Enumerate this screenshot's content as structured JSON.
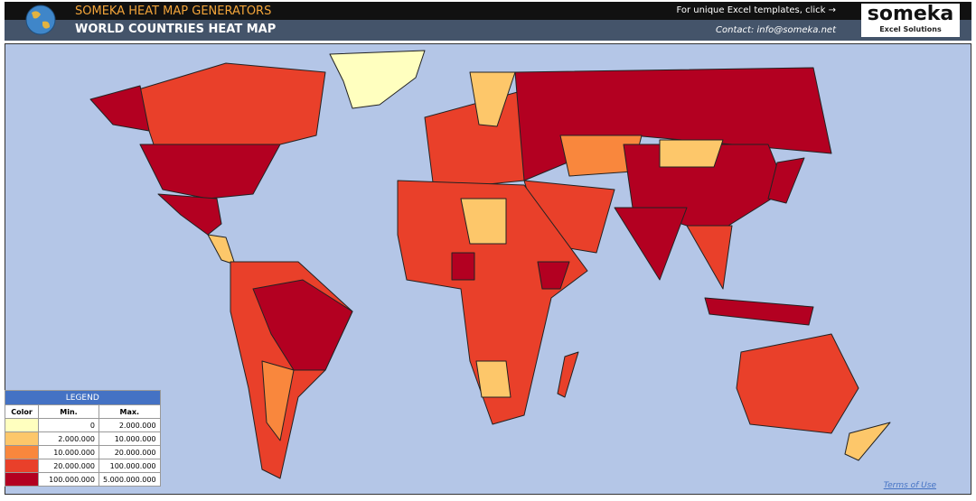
{
  "header": {
    "app_title": "SOMEKA HEAT MAP GENERATORS",
    "page_title": "WORLD COUNTRIES HEAT MAP",
    "templates_text": "For unique Excel templates, click →",
    "contact": "Contact: info@someka.net"
  },
  "logo": {
    "name": "someka",
    "tagline": "Excel Solutions"
  },
  "legend": {
    "title": "LEGEND",
    "columns": [
      "Color",
      "Min.",
      "Max."
    ],
    "rows": [
      {
        "min": "0",
        "max": "2.000.000",
        "color": "#ffffbf"
      },
      {
        "min": "2.000.000",
        "max": "10.000.000",
        "color": "#fdc76a"
      },
      {
        "min": "10.000.000",
        "max": "20.000.000",
        "color": "#f9873d"
      },
      {
        "min": "20.000.000",
        "max": "100.000.000",
        "color": "#e9402a"
      },
      {
        "min": "100.000.000",
        "max": "5.000.000.000",
        "color": "#b30021"
      }
    ]
  },
  "footer": {
    "terms": "Terms of Use"
  }
}
